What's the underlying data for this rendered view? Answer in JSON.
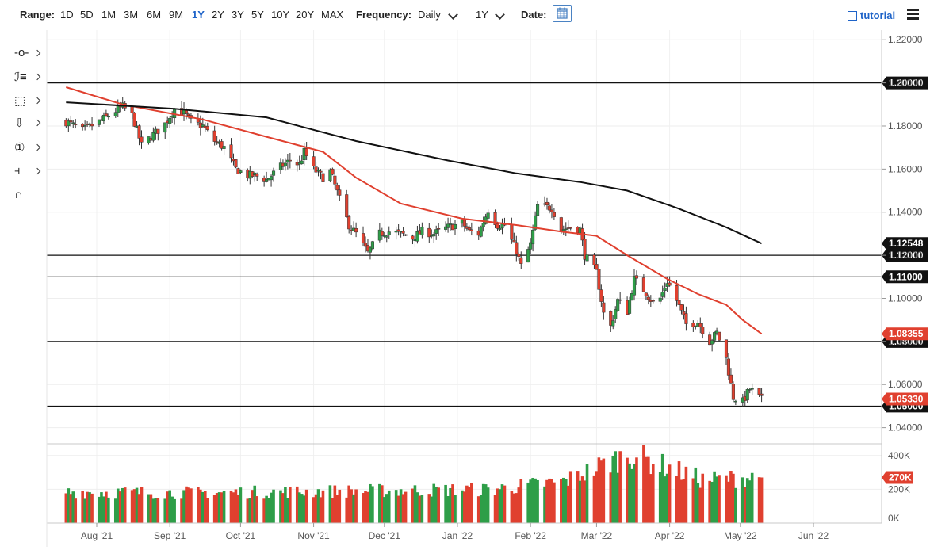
{
  "toolbar": {
    "range_label": "Range:",
    "ranges": [
      "1D",
      "5D",
      "1M",
      "3M",
      "6M",
      "9M",
      "1Y",
      "2Y",
      "3Y",
      "5Y",
      "10Y",
      "20Y",
      "MAX"
    ],
    "active_range": "1Y",
    "frequency_label": "Frequency:",
    "frequency_value": "Daily",
    "period_value": "1Y",
    "date_label": "Date:",
    "tutorial_label": "tutorial"
  },
  "left_tools": [
    {
      "icon": "crosshair-icon",
      "glyph": "-o-"
    },
    {
      "icon": "fibonacci-icon",
      "glyph": "ℐ≡"
    },
    {
      "icon": "rectangle-icon",
      "glyph": "⬚"
    },
    {
      "icon": "arrow-down-icon",
      "glyph": "⇩"
    },
    {
      "icon": "number-marker-icon",
      "glyph": "①"
    },
    {
      "icon": "measure-tool-icon",
      "glyph": "⫞"
    },
    {
      "icon": "magnet-icon",
      "glyph": "∩"
    }
  ],
  "colors": {
    "up": "#2e9e48",
    "down": "#e0402f",
    "ma_fast": "#e0402f",
    "ma_slow": "#111111",
    "accent": "#1e63c8"
  },
  "chart_data": {
    "type": "candlestick",
    "instrument_note": "",
    "frequency": "Daily",
    "price_axis": {
      "ticks": [
        "1.22000",
        "1.20000",
        "1.18000",
        "1.16000",
        "1.14000",
        "1.12000",
        "1.10000",
        "1.08000",
        "1.06000",
        "1.04000"
      ],
      "ylim": [
        1.0325,
        1.2245
      ]
    },
    "time_axis": {
      "ticks": [
        "Aug '21",
        "Sep '21",
        "Oct '21",
        "Nov '21",
        "Dec '21",
        "Jan '22",
        "Feb '22",
        "Mar '22",
        "Apr '22",
        "May '22",
        "Jun '22"
      ]
    },
    "horizontal_lines": [
      {
        "value": 1.2,
        "label": "1.20000"
      },
      {
        "value": 1.12,
        "label": "1.12000"
      },
      {
        "value": 1.11,
        "label": "1.11000"
      },
      {
        "value": 1.08,
        "label": "1.08000"
      },
      {
        "value": 1.05,
        "label": "1.05000"
      }
    ],
    "price_markers": [
      {
        "value": 1.12548,
        "label": "1.12548",
        "series": "ma_slow"
      },
      {
        "value": 1.08355,
        "label": "1.08355",
        "series": "ma_fast"
      },
      {
        "value": 1.0533,
        "label": "1.05330",
        "series": "last_price"
      }
    ],
    "close_path": [
      [
        "Jul 19 '21",
        1.182
      ],
      [
        "Jul 26 '21",
        1.178
      ],
      [
        "Aug 2 '21",
        1.182
      ],
      [
        "Aug 9 '21",
        1.187
      ],
      [
        "Aug 12 '21",
        1.189
      ],
      [
        "Aug 16 '21",
        1.185
      ],
      [
        "Aug 20 '21",
        1.171
      ],
      [
        "Aug 25 '21",
        1.176
      ],
      [
        "Aug 30 '21",
        1.181
      ],
      [
        "Sep 3 '21",
        1.188
      ],
      [
        "Sep 7 '21",
        1.186
      ],
      [
        "Sep 10 '21",
        1.182
      ],
      [
        "Sep 15 '21",
        1.18
      ],
      [
        "Sep 20 '21",
        1.173
      ],
      [
        "Sep 24 '21",
        1.17
      ],
      [
        "Sep 29 '21",
        1.16
      ],
      [
        "Oct 4 '21",
        1.157
      ],
      [
        "Oct 7 '21",
        1.157
      ],
      [
        "Oct 12 '21",
        1.155
      ],
      [
        "Oct 18 '21",
        1.161
      ],
      [
        "Oct 22 '21",
        1.164
      ],
      [
        "Oct 26 '21",
        1.162
      ],
      [
        "Oct 28 '21",
        1.168
      ],
      [
        "Nov 1 '21",
        1.16
      ],
      [
        "Nov 5 '21",
        1.156
      ],
      [
        "Nov 8 '21",
        1.159
      ],
      [
        "Nov 12 '21",
        1.146
      ],
      [
        "Nov 16 '21",
        1.134
      ],
      [
        "Nov 19 '21",
        1.13
      ],
      [
        "Nov 24 '21",
        1.121
      ],
      [
        "Nov 29 '21",
        1.13
      ],
      [
        "Dec 3 '21",
        1.131
      ],
      [
        "Dec 8 '21",
        1.13
      ],
      [
        "Dec 13 '21",
        1.128
      ],
      [
        "Dec 17 '21",
        1.131
      ],
      [
        "Dec 22 '21",
        1.13
      ],
      [
        "Dec 28 '21",
        1.133
      ],
      [
        "Jan 3 '22",
        1.135
      ],
      [
        "Jan 6 '22",
        1.131
      ],
      [
        "Jan 10 '22",
        1.13
      ],
      [
        "Jan 14 '22",
        1.141
      ],
      [
        "Jan 18 '22",
        1.134
      ],
      [
        "Jan 21 '22",
        1.134
      ],
      [
        "Jan 26 '22",
        1.122
      ],
      [
        "Jan 28 '22",
        1.115
      ],
      [
        "Feb 1 '22",
        1.125
      ],
      [
        "Feb 4 '22",
        1.143
      ],
      [
        "Feb 10 '22",
        1.142
      ],
      [
        "Feb 14 '22",
        1.132
      ],
      [
        "Feb 18 '22",
        1.133
      ],
      [
        "Feb 22 '22",
        1.132
      ],
      [
        "Feb 24 '22",
        1.12
      ],
      [
        "Mar 1 '22",
        1.112
      ],
      [
        "Mar 4 '22",
        1.093
      ],
      [
        "Mar 7 '22",
        1.087
      ],
      [
        "Mar 10 '22",
        1.099
      ],
      [
        "Mar 14 '22",
        1.094
      ],
      [
        "Mar 17 '22",
        1.109
      ],
      [
        "Mar 21 '22",
        1.104
      ],
      [
        "Mar 25 '22",
        1.098
      ],
      [
        "Mar 28 '22",
        1.1
      ],
      [
        "Mar 31 '22",
        1.108
      ],
      [
        "Apr 4 '22",
        1.099
      ],
      [
        "Apr 8 '22",
        1.088
      ],
      [
        "Apr 13 '22",
        1.089
      ],
      [
        "Apr 18 '22",
        1.08
      ],
      [
        "Apr 21 '22",
        1.084
      ],
      [
        "Apr 25 '22",
        1.072
      ],
      [
        "Apr 28 '22",
        1.054
      ],
      [
        "May 2 '22",
        1.052
      ],
      [
        "May 5 '22",
        1.058
      ],
      [
        "May 6 '22",
        1.057
      ],
      [
        "May 9 '22",
        1.054
      ],
      [
        "May 10 '22",
        1.053
      ]
    ],
    "moving_averages": [
      {
        "key": "ma_fast",
        "points": [
          [
            "Jul 19 '21",
            1.198
          ],
          [
            "Aug 12 '21",
            1.19
          ],
          [
            "Sep 15 '21",
            1.183
          ],
          [
            "Oct 12 '21",
            1.175
          ],
          [
            "Nov 5 '21",
            1.168
          ],
          [
            "Nov 19 '21",
            1.156
          ],
          [
            "Dec 8 '21",
            1.144
          ],
          [
            "Jan 3 '22",
            1.137
          ],
          [
            "Jan 26 '22",
            1.134
          ],
          [
            "Feb 14 '22",
            1.131
          ],
          [
            "Mar 1 '22",
            1.129
          ],
          [
            "Mar 14 '22",
            1.12
          ],
          [
            "Mar 31 '22",
            1.109
          ],
          [
            "Apr 13 '22",
            1.102
          ],
          [
            "Apr 25 '22",
            1.097
          ],
          [
            "May 2 '22",
            1.09
          ],
          [
            "May 10 '22",
            1.0835
          ]
        ]
      },
      {
        "key": "ma_slow",
        "points": [
          [
            "Jul 19 '21",
            1.191
          ],
          [
            "Sep 3 '21",
            1.188
          ],
          [
            "Oct 12 '21",
            1.184
          ],
          [
            "Nov 19 '21",
            1.173
          ],
          [
            "Dec 28 '21",
            1.164
          ],
          [
            "Jan 26 '22",
            1.158
          ],
          [
            "Feb 22 '22",
            1.154
          ],
          [
            "Mar 14 '22",
            1.15
          ],
          [
            "Apr 4 '22",
            1.142
          ],
          [
            "Apr 25 '22",
            1.133
          ],
          [
            "May 10 '22",
            1.1255
          ]
        ]
      }
    ],
    "volume": {
      "axis_ticks": [
        "400K",
        "200K",
        "0K"
      ],
      "ylim": [
        0,
        460000
      ],
      "last_marker": "270K",
      "approx_levels": [
        [
          "Jul '21",
          180000
        ],
        [
          "Sep '21",
          175000
        ],
        [
          "Nov '21",
          185000
        ],
        [
          "Dec '21",
          190000
        ],
        [
          "Jan '22",
          195000
        ],
        [
          "Feb '22",
          240000
        ],
        [
          "Mar '22",
          400000
        ],
        [
          "Apr '22",
          250000
        ],
        [
          "May '22",
          270000
        ]
      ]
    }
  }
}
